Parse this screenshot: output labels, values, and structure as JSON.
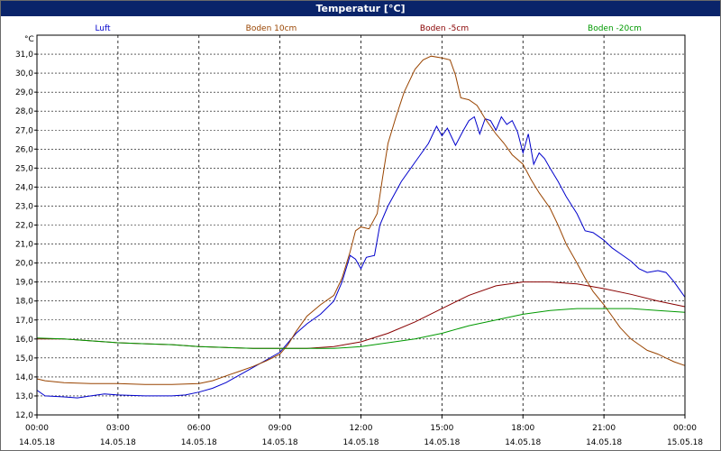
{
  "window": {
    "title": "Temperatur [°C]"
  },
  "chart_data": {
    "type": "line",
    "title": "Temperatur [°C]",
    "ylabel": "°C",
    "xlabel": "",
    "ylim": [
      12.0,
      32.0
    ],
    "xlim": [
      0,
      24
    ],
    "y_ticks": [
      "12,0",
      "13,0",
      "14,0",
      "15,0",
      "16,0",
      "17,0",
      "18,0",
      "19,0",
      "20,0",
      "21,0",
      "22,0",
      "23,0",
      "24,0",
      "25,0",
      "26,0",
      "27,0",
      "28,0",
      "29,0",
      "30,0",
      "31,0"
    ],
    "x_ticks": [
      {
        "h": 0,
        "time": "00:00",
        "date": "14.05.18"
      },
      {
        "h": 3,
        "time": "03:00",
        "date": "14.05.18"
      },
      {
        "h": 6,
        "time": "06:00",
        "date": "14.05.18"
      },
      {
        "h": 9,
        "time": "09:00",
        "date": "14.05.18"
      },
      {
        "h": 12,
        "time": "12:00",
        "date": "14.05.18"
      },
      {
        "h": 15,
        "time": "15:00",
        "date": "14.05.18"
      },
      {
        "h": 18,
        "time": "18:00",
        "date": "14.05.18"
      },
      {
        "h": 21,
        "time": "21:00",
        "date": "14.05.18"
      },
      {
        "h": 24,
        "time": "00:00",
        "date": "15.05.18"
      }
    ],
    "grid": true,
    "legend_position": "top",
    "series": [
      {
        "name": "Luft",
        "color": "#0000cc",
        "points": [
          [
            0,
            13.3
          ],
          [
            0.3,
            13.0
          ],
          [
            1,
            12.95
          ],
          [
            1.5,
            12.9
          ],
          [
            2,
            13.0
          ],
          [
            2.5,
            13.1
          ],
          [
            3,
            13.05
          ],
          [
            4,
            13.0
          ],
          [
            5,
            13.0
          ],
          [
            5.5,
            13.05
          ],
          [
            6,
            13.2
          ],
          [
            6.5,
            13.4
          ],
          [
            7,
            13.7
          ],
          [
            7.5,
            14.1
          ],
          [
            8,
            14.5
          ],
          [
            8.5,
            14.9
          ],
          [
            9,
            15.3
          ],
          [
            9.3,
            15.8
          ],
          [
            9.6,
            16.3
          ],
          [
            10,
            16.8
          ],
          [
            10.5,
            17.3
          ],
          [
            11,
            18.0
          ],
          [
            11.3,
            19.0
          ],
          [
            11.6,
            20.4
          ],
          [
            11.8,
            20.2
          ],
          [
            12,
            19.7
          ],
          [
            12.2,
            20.3
          ],
          [
            12.5,
            20.4
          ],
          [
            12.7,
            22.0
          ],
          [
            13,
            23.0
          ],
          [
            13.5,
            24.3
          ],
          [
            14,
            25.3
          ],
          [
            14.5,
            26.3
          ],
          [
            14.8,
            27.2
          ],
          [
            15,
            26.7
          ],
          [
            15.2,
            27.1
          ],
          [
            15.5,
            26.2
          ],
          [
            15.8,
            27.0
          ],
          [
            16,
            27.5
          ],
          [
            16.2,
            27.7
          ],
          [
            16.4,
            26.8
          ],
          [
            16.6,
            27.6
          ],
          [
            16.8,
            27.5
          ],
          [
            17,
            27.0
          ],
          [
            17.2,
            27.7
          ],
          [
            17.4,
            27.3
          ],
          [
            17.6,
            27.5
          ],
          [
            17.8,
            26.9
          ],
          [
            18,
            25.8
          ],
          [
            18.2,
            26.8
          ],
          [
            18.4,
            25.2
          ],
          [
            18.6,
            25.8
          ],
          [
            18.8,
            25.5
          ],
          [
            19,
            25.0
          ],
          [
            19.3,
            24.3
          ],
          [
            19.6,
            23.5
          ],
          [
            20,
            22.6
          ],
          [
            20.3,
            21.7
          ],
          [
            20.6,
            21.6
          ],
          [
            21,
            21.2
          ],
          [
            21.3,
            20.8
          ],
          [
            21.6,
            20.5
          ],
          [
            22,
            20.1
          ],
          [
            22.3,
            19.7
          ],
          [
            22.6,
            19.5
          ],
          [
            23,
            19.6
          ],
          [
            23.3,
            19.5
          ],
          [
            23.6,
            19.0
          ],
          [
            23.8,
            18.6
          ],
          [
            24,
            18.2
          ]
        ]
      },
      {
        "name": "Boden 10cm",
        "color": "#994400",
        "points": [
          [
            0,
            13.9
          ],
          [
            0.3,
            13.8
          ],
          [
            1,
            13.7
          ],
          [
            2,
            13.65
          ],
          [
            3,
            13.65
          ],
          [
            4,
            13.6
          ],
          [
            5,
            13.6
          ],
          [
            6,
            13.65
          ],
          [
            6.5,
            13.8
          ],
          [
            7,
            14.05
          ],
          [
            7.5,
            14.3
          ],
          [
            8,
            14.55
          ],
          [
            8.5,
            14.85
          ],
          [
            9,
            15.2
          ],
          [
            9.3,
            15.7
          ],
          [
            9.6,
            16.4
          ],
          [
            10,
            17.2
          ],
          [
            10.5,
            17.8
          ],
          [
            11,
            18.3
          ],
          [
            11.3,
            19.2
          ],
          [
            11.6,
            20.6
          ],
          [
            11.8,
            21.7
          ],
          [
            12,
            21.9
          ],
          [
            12.3,
            21.8
          ],
          [
            12.6,
            22.6
          ],
          [
            12.8,
            24.5
          ],
          [
            13,
            26.3
          ],
          [
            13.3,
            27.7
          ],
          [
            13.6,
            29.0
          ],
          [
            14,
            30.2
          ],
          [
            14.3,
            30.7
          ],
          [
            14.6,
            30.9
          ],
          [
            15,
            30.8
          ],
          [
            15.3,
            30.7
          ],
          [
            15.5,
            29.9
          ],
          [
            15.7,
            28.7
          ],
          [
            16,
            28.6
          ],
          [
            16.3,
            28.3
          ],
          [
            16.6,
            27.6
          ],
          [
            17,
            26.8
          ],
          [
            17.3,
            26.3
          ],
          [
            17.6,
            25.7
          ],
          [
            18,
            25.2
          ],
          [
            18.3,
            24.4
          ],
          [
            18.6,
            23.7
          ],
          [
            19,
            22.9
          ],
          [
            19.3,
            22.0
          ],
          [
            19.6,
            21.0
          ],
          [
            20,
            20.0
          ],
          [
            20.3,
            19.2
          ],
          [
            20.6,
            18.5
          ],
          [
            21,
            17.8
          ],
          [
            21.3,
            17.2
          ],
          [
            21.6,
            16.6
          ],
          [
            22,
            16.0
          ],
          [
            22.3,
            15.7
          ],
          [
            22.6,
            15.4
          ],
          [
            23,
            15.2
          ],
          [
            23.3,
            15.0
          ],
          [
            23.6,
            14.8
          ],
          [
            24,
            14.6
          ]
        ]
      },
      {
        "name": "Boden -5cm",
        "color": "#880000",
        "points": [
          [
            0,
            16.0
          ],
          [
            1,
            16.0
          ],
          [
            2,
            15.9
          ],
          [
            3,
            15.8
          ],
          [
            4,
            15.75
          ],
          [
            5,
            15.7
          ],
          [
            6,
            15.6
          ],
          [
            7,
            15.55
          ],
          [
            8,
            15.5
          ],
          [
            9,
            15.5
          ],
          [
            10,
            15.5
          ],
          [
            11,
            15.6
          ],
          [
            12,
            15.85
          ],
          [
            13,
            16.3
          ],
          [
            14,
            16.9
          ],
          [
            15,
            17.6
          ],
          [
            16,
            18.3
          ],
          [
            17,
            18.8
          ],
          [
            18,
            19.0
          ],
          [
            19,
            19.0
          ],
          [
            20,
            18.9
          ],
          [
            21,
            18.65
          ],
          [
            22,
            18.35
          ],
          [
            23,
            18.0
          ],
          [
            24,
            17.7
          ]
        ]
      },
      {
        "name": "Boden -20cm",
        "color": "#009900",
        "points": [
          [
            0,
            16.05
          ],
          [
            1,
            16.0
          ],
          [
            2,
            15.9
          ],
          [
            3,
            15.8
          ],
          [
            4,
            15.75
          ],
          [
            5,
            15.7
          ],
          [
            6,
            15.6
          ],
          [
            7,
            15.55
          ],
          [
            8,
            15.5
          ],
          [
            9,
            15.5
          ],
          [
            10,
            15.5
          ],
          [
            11,
            15.5
          ],
          [
            12,
            15.6
          ],
          [
            13,
            15.8
          ],
          [
            14,
            16.0
          ],
          [
            15,
            16.3
          ],
          [
            16,
            16.7
          ],
          [
            17,
            17.0
          ],
          [
            18,
            17.3
          ],
          [
            19,
            17.5
          ],
          [
            20,
            17.6
          ],
          [
            21,
            17.6
          ],
          [
            22,
            17.6
          ],
          [
            23,
            17.5
          ],
          [
            24,
            17.4
          ]
        ]
      }
    ]
  }
}
